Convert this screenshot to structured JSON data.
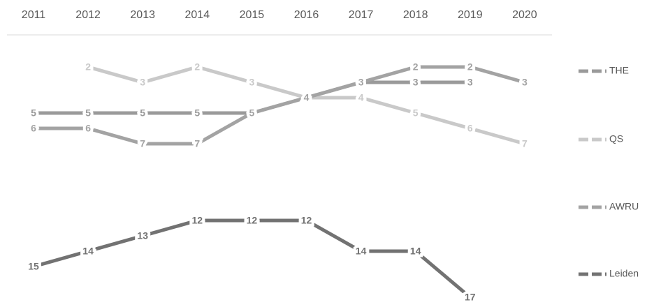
{
  "chart_data": {
    "type": "line",
    "categories": [
      "2011",
      "2012",
      "2013",
      "2014",
      "2015",
      "2016",
      "2017",
      "2018",
      "2019",
      "2020"
    ],
    "series": [
      {
        "name": "THE",
        "color": "#9a9a9a",
        "values": [
          5,
          5,
          5,
          5,
          5,
          4,
          3,
          3,
          3,
          null
        ]
      },
      {
        "name": "QS",
        "color": "#c9c9c9",
        "values": [
          null,
          2,
          3,
          2,
          3,
          4,
          4,
          5,
          6,
          7
        ]
      },
      {
        "name": "AWRU",
        "color": "#a3a3a3",
        "values": [
          6,
          6,
          7,
          7,
          5,
          4,
          3,
          2,
          2,
          3
        ]
      },
      {
        "name": "Leiden",
        "color": "#727272",
        "values": [
          15,
          14,
          13,
          12,
          12,
          12,
          14,
          14,
          17,
          null
        ]
      }
    ],
    "ylim": [
      2,
      17
    ],
    "y_reversed": true,
    "data_labels": true,
    "legend": "right"
  }
}
